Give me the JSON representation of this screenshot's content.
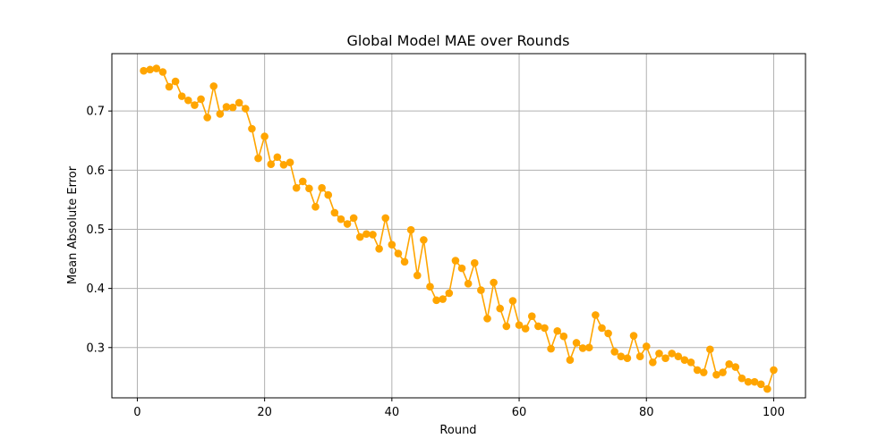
{
  "chart_data": {
    "type": "line",
    "title": "Global Model MAE over Rounds",
    "xlabel": "Round",
    "ylabel": "Mean Absolute Error",
    "xlim": [
      -4,
      105
    ],
    "ylim": [
      0.215,
      0.797
    ],
    "xticks": [
      0,
      20,
      40,
      60,
      80,
      100
    ],
    "yticks": [
      0.3,
      0.4,
      0.5,
      0.6,
      0.7
    ],
    "ytick_labels": [
      "0.3",
      "0.4",
      "0.5",
      "0.6",
      "0.7"
    ],
    "grid": true,
    "color": "#FFA500",
    "marker": "circle",
    "x": [
      1,
      2,
      3,
      4,
      5,
      6,
      7,
      8,
      9,
      10,
      11,
      12,
      13,
      14,
      15,
      16,
      17,
      18,
      19,
      20,
      21,
      22,
      23,
      24,
      25,
      26,
      27,
      28,
      29,
      30,
      31,
      32,
      33,
      34,
      35,
      36,
      37,
      38,
      39,
      40,
      41,
      42,
      43,
      44,
      45,
      46,
      47,
      48,
      49,
      50,
      51,
      52,
      53,
      54,
      55,
      56,
      57,
      58,
      59,
      60,
      61,
      62,
      63,
      64,
      65,
      66,
      67,
      68,
      69,
      70,
      71,
      72,
      73,
      74,
      75,
      76,
      77,
      78,
      79,
      80,
      81,
      82,
      83,
      84,
      85,
      86,
      87,
      88,
      89,
      90,
      91,
      92,
      93,
      94,
      95,
      96,
      97,
      98,
      99,
      100
    ],
    "y": [
      0.768,
      0.77,
      0.772,
      0.766,
      0.741,
      0.75,
      0.725,
      0.718,
      0.71,
      0.72,
      0.689,
      0.742,
      0.695,
      0.707,
      0.706,
      0.714,
      0.704,
      0.67,
      0.62,
      0.657,
      0.61,
      0.622,
      0.609,
      0.613,
      0.57,
      0.581,
      0.569,
      0.538,
      0.57,
      0.558,
      0.528,
      0.517,
      0.509,
      0.519,
      0.487,
      0.492,
      0.491,
      0.467,
      0.519,
      0.474,
      0.459,
      0.445,
      0.499,
      0.422,
      0.482,
      0.403,
      0.38,
      0.382,
      0.392,
      0.447,
      0.434,
      0.408,
      0.443,
      0.397,
      0.349,
      0.41,
      0.366,
      0.336,
      0.379,
      0.338,
      0.332,
      0.353,
      0.336,
      0.333,
      0.298,
      0.328,
      0.319,
      0.279,
      0.308,
      0.299,
      0.3,
      0.355,
      0.333,
      0.324,
      0.293,
      0.285,
      0.282,
      0.32,
      0.285,
      0.302,
      0.275,
      0.29,
      0.282,
      0.29,
      0.285,
      0.279,
      0.275,
      0.262,
      0.258,
      0.297,
      0.254,
      0.258,
      0.272,
      0.267,
      0.248,
      0.242,
      0.242,
      0.238,
      0.23,
      0.262
    ]
  }
}
